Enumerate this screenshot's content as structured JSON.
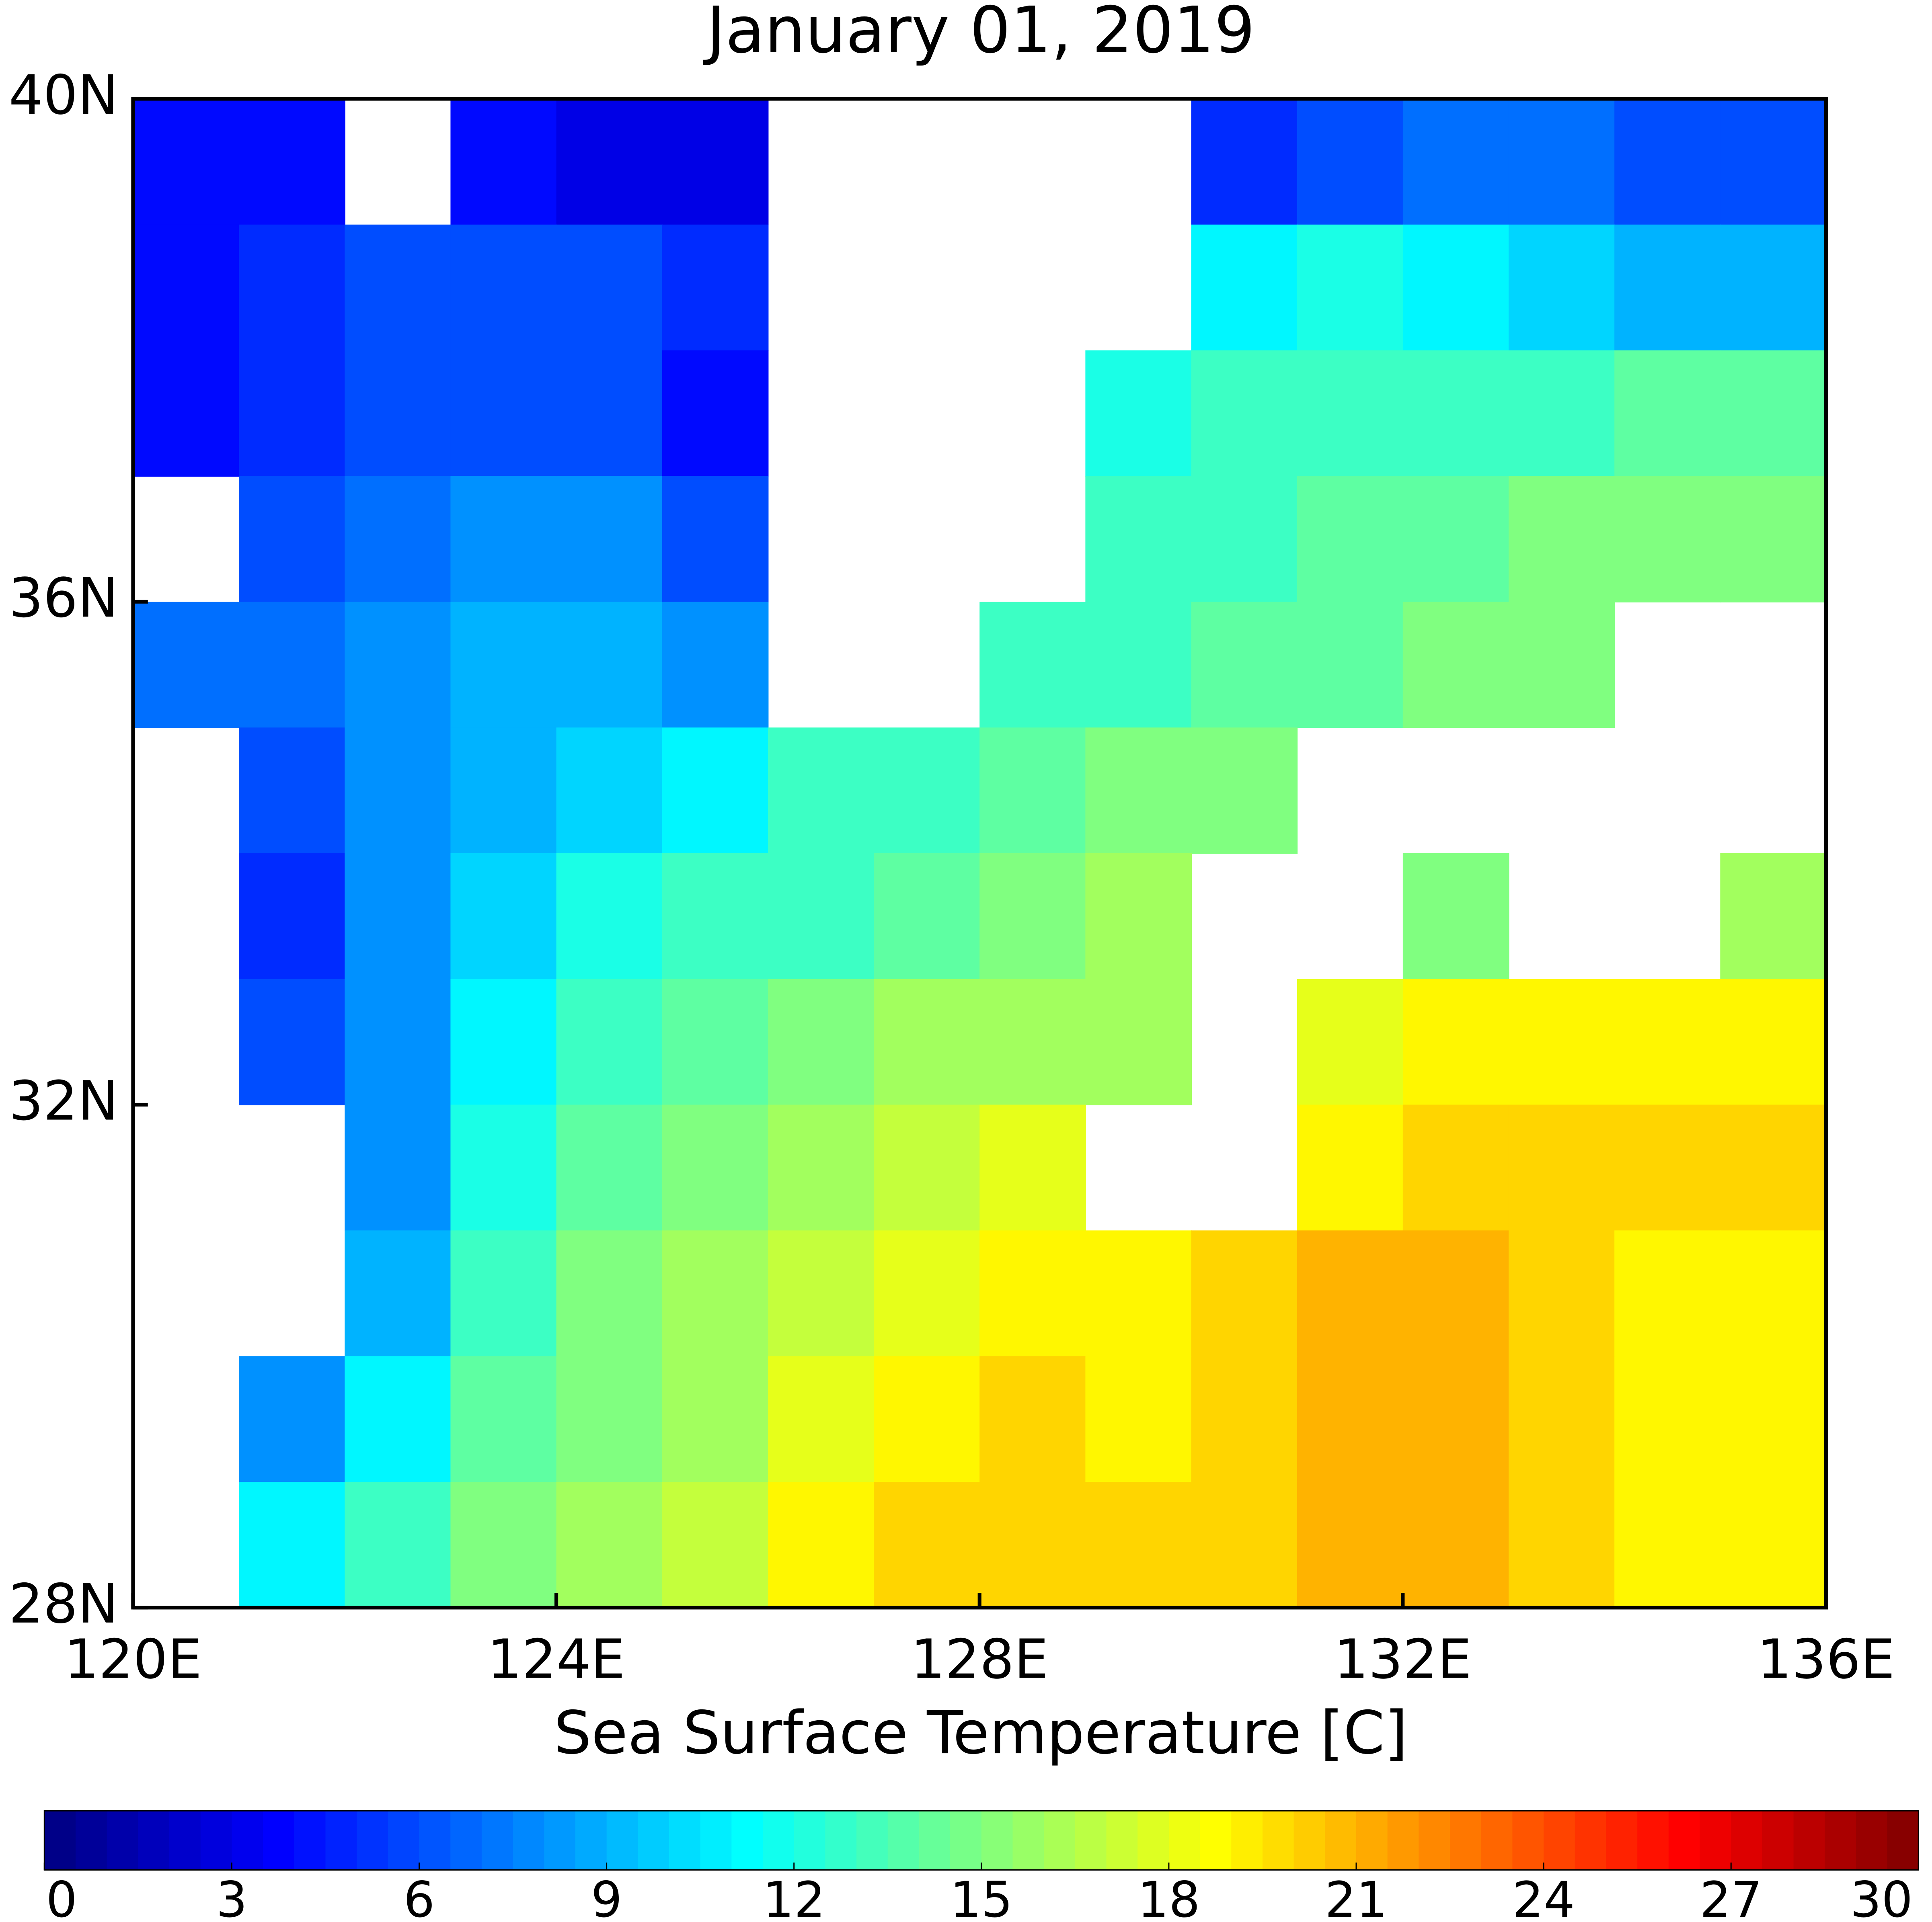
{
  "chart_data": {
    "type": "heatmap",
    "title": "January 01, 2019",
    "xlabel": "Sea Surface Temperature [C]",
    "xlim": [
      120,
      136
    ],
    "ylim": [
      28,
      40
    ],
    "xticks": [
      {
        "value": 120,
        "label": "120E"
      },
      {
        "value": 124,
        "label": "124E"
      },
      {
        "value": 128,
        "label": "128E"
      },
      {
        "value": 132,
        "label": "132E"
      },
      {
        "value": 136,
        "label": "136E"
      }
    ],
    "yticks": [
      {
        "value": 28,
        "label": "28N"
      },
      {
        "value": 32,
        "label": "32N"
      },
      {
        "value": 36,
        "label": "36N"
      },
      {
        "value": 40,
        "label": "40N"
      }
    ],
    "lons": [
      120.5,
      121.5,
      122.5,
      123.5,
      124.5,
      125.5,
      126.5,
      127.5,
      128.5,
      129.5,
      130.5,
      131.5,
      132.5,
      133.5,
      134.5,
      135.5
    ],
    "lats": [
      39.5,
      38.5,
      37.5,
      36.5,
      35.5,
      34.5,
      33.5,
      32.5,
      31.5,
      30.5,
      29.5,
      28.5
    ],
    "values": [
      [
        4,
        4,
        null,
        4,
        3,
        3,
        null,
        null,
        null,
        null,
        5,
        6,
        7,
        7,
        6,
        6
      ],
      [
        4,
        5,
        6,
        6,
        6,
        5,
        null,
        null,
        null,
        null,
        11,
        12,
        11,
        10,
        9,
        9
      ],
      [
        4,
        5,
        6,
        6,
        6,
        4,
        null,
        null,
        null,
        12,
        13,
        13,
        13,
        13,
        14,
        14
      ],
      [
        null,
        6,
        7,
        8,
        8,
        6,
        null,
        null,
        null,
        13,
        13,
        14,
        14,
        15,
        15,
        15
      ],
      [
        7,
        7,
        8,
        9,
        9,
        8,
        null,
        null,
        13,
        13,
        14,
        14,
        15,
        15,
        null,
        null
      ],
      [
        null,
        6,
        8,
        9,
        10,
        11,
        13,
        13,
        14,
        15,
        15,
        null,
        null,
        null,
        null,
        null
      ],
      [
        null,
        5,
        8,
        10,
        12,
        13,
        13,
        14,
        15,
        16,
        null,
        null,
        15,
        null,
        null,
        16
      ],
      [
        null,
        6,
        8,
        11,
        13,
        14,
        15,
        16,
        16,
        16,
        null,
        18,
        19,
        19,
        19,
        19
      ],
      [
        null,
        null,
        8,
        12,
        14,
        15,
        16,
        17,
        18,
        null,
        null,
        19,
        20,
        20,
        20,
        20
      ],
      [
        null,
        null,
        9,
        13,
        15,
        16,
        17,
        18,
        19,
        19,
        20,
        21,
        21,
        20,
        19,
        19
      ],
      [
        null,
        8,
        11,
        14,
        15,
        16,
        18,
        19,
        20,
        19,
        20,
        21,
        21,
        20,
        19,
        19
      ],
      [
        null,
        11,
        13,
        15,
        16,
        17,
        19,
        20,
        20,
        20,
        20,
        21,
        21,
        20,
        19,
        19
      ]
    ],
    "clim": [
      0,
      30
    ],
    "cticks": [
      0,
      3,
      6,
      9,
      12,
      15,
      18,
      21,
      24,
      27,
      30
    ],
    "colormap": [
      "#000080",
      "#0000ff",
      "#0080ff",
      "#00ffff",
      "#80ff80",
      "#ffff00",
      "#ff8000",
      "#ff0000",
      "#800000"
    ]
  }
}
